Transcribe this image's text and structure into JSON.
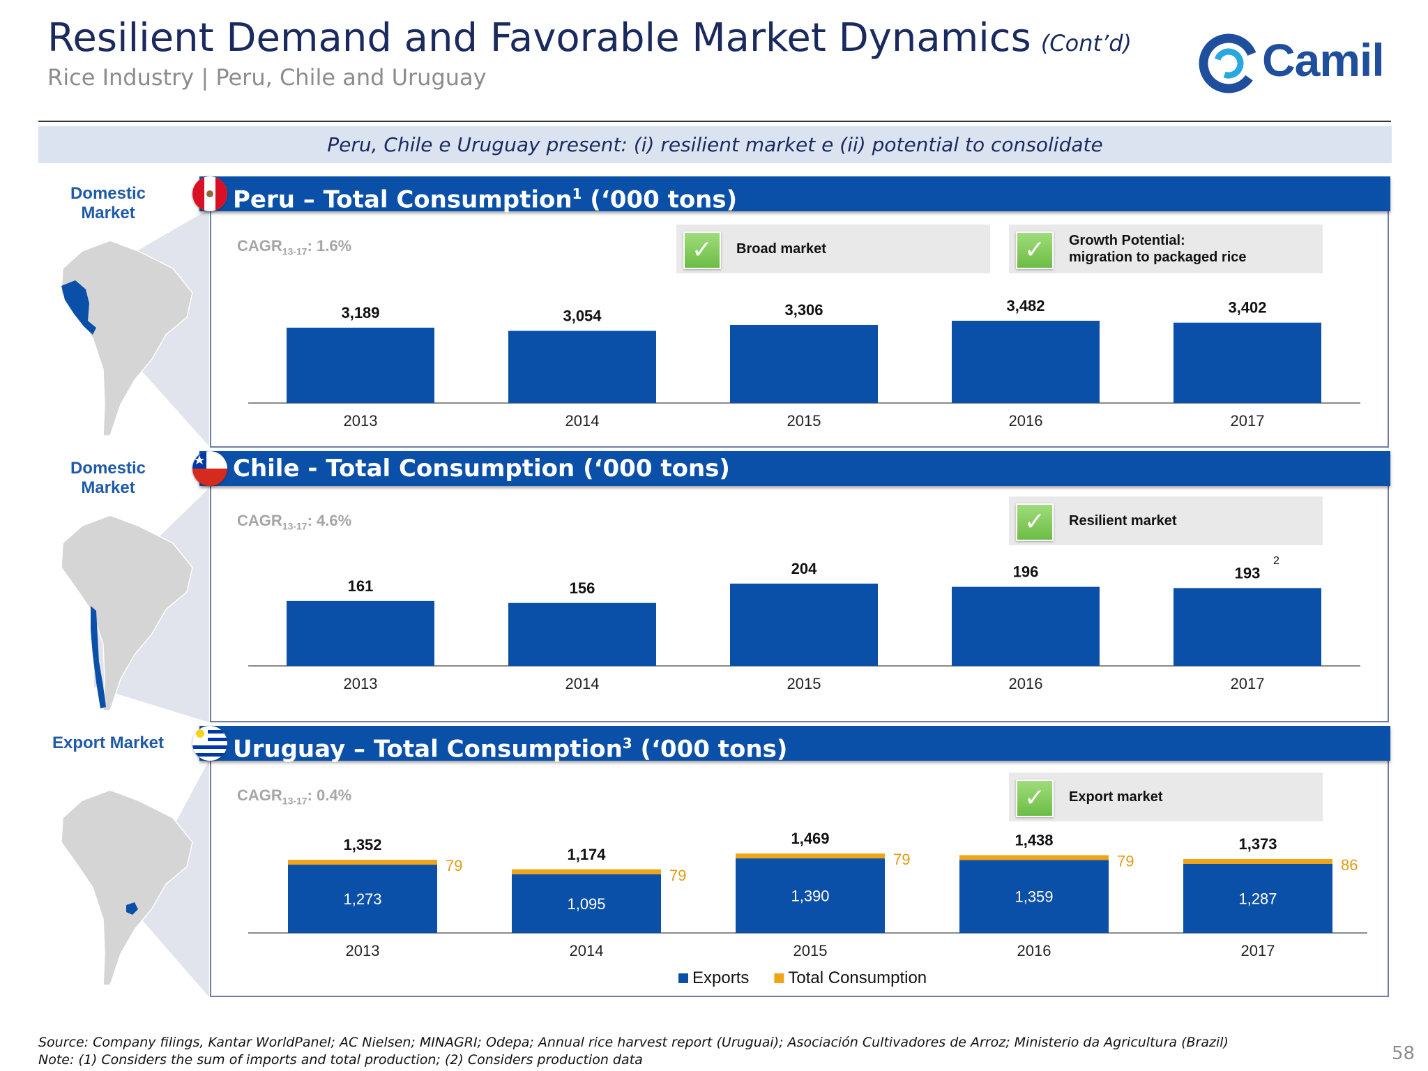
{
  "header": {
    "title": "Resilient Demand and Favorable Market Dynamics",
    "title_suffix": "(Cont’d)",
    "subtitle": "Rice Industry | Peru, Chile and Uruguay",
    "logo_text": "Camil"
  },
  "banner": "Peru, Chile e Uruguay present: (i) resilient market e (ii) potential to consolidate",
  "sections": {
    "peru": {
      "side_label_1": "Domestic",
      "side_label_2": "Market",
      "title_main": "Peru – Total Consumption",
      "title_sup": "1",
      "title_units": " (‘000 tons)",
      "cagr_label": "CAGR",
      "cagr_sub": "13-17",
      "cagr_value": ": 1.6%",
      "callouts": [
        "Broad market",
        "Growth Potential:",
        "migration to packaged rice"
      ]
    },
    "chile": {
      "side_label_1": "Domestic",
      "side_label_2": "Market",
      "title_main": "Chile - Total Consumption",
      "title_units": " (‘000 tons)",
      "cagr_label": "CAGR",
      "cagr_sub": "13-17",
      "cagr_value": ": 4.6%",
      "callouts": [
        "Resilient market"
      ],
      "note_mark": "2"
    },
    "uruguay": {
      "side_label": "Export Market",
      "title_main": "Uruguay – Total Consumption",
      "title_sup": "3",
      "title_units": " (‘000 tons)",
      "cagr_label": "CAGR",
      "cagr_sub": "13-17",
      "cagr_value": ": 0.4%",
      "callouts": [
        "Export market"
      ]
    }
  },
  "chart_data": [
    {
      "type": "bar",
      "title": "Peru – Total Consumption (‘000 tons)",
      "categories": [
        "2013",
        "2014",
        "2015",
        "2016",
        "2017"
      ],
      "values": [
        3189,
        3054,
        3306,
        3482,
        3402
      ],
      "labels": [
        "3,189",
        "3,054",
        "3,306",
        "3,482",
        "3,402"
      ],
      "color": "#0b50a8"
    },
    {
      "type": "bar",
      "title": "Chile - Total Consumption (‘000 tons)",
      "categories": [
        "2013",
        "2014",
        "2015",
        "2016",
        "2017"
      ],
      "values": [
        161,
        156,
        204,
        196,
        193
      ],
      "labels": [
        "161",
        "156",
        "204",
        "196",
        "193"
      ],
      "color": "#0b50a8"
    },
    {
      "type": "bar",
      "stacked": true,
      "title": "Uruguay – Total Consumption (‘000 tons)",
      "categories": [
        "2013",
        "2014",
        "2015",
        "2016",
        "2017"
      ],
      "series": [
        {
          "name": "Exports",
          "values": [
            1273,
            1095,
            1390,
            1359,
            1287
          ],
          "labels": [
            "1,273",
            "1,095",
            "1,390",
            "1,359",
            "1,287"
          ],
          "color": "#0b50a8"
        },
        {
          "name": "Total Consumption",
          "values": [
            79,
            79,
            79,
            79,
            86
          ],
          "labels": [
            "79",
            "79",
            "79",
            "79",
            "86"
          ],
          "color": "#f0a418"
        }
      ],
      "totals": [
        1352,
        1174,
        1469,
        1438,
        1373
      ],
      "total_labels": [
        "1,352",
        "1,174",
        "1,469",
        "1,438",
        "1,373"
      ],
      "legend": [
        "Exports",
        "Total Consumption"
      ]
    }
  ],
  "footer": {
    "source": "Source: Company filings, Kantar WorldPanel; AC Nielsen; MINAGRI; Odepa; Annual rice harvest report (Uruguai); Asociación Cultivadores de Arroz; Ministerio da Agricultura (Brazil)",
    "note": "Note: (1) Considers the sum of imports and total production; (2) Considers production data",
    "page_number": "58"
  }
}
